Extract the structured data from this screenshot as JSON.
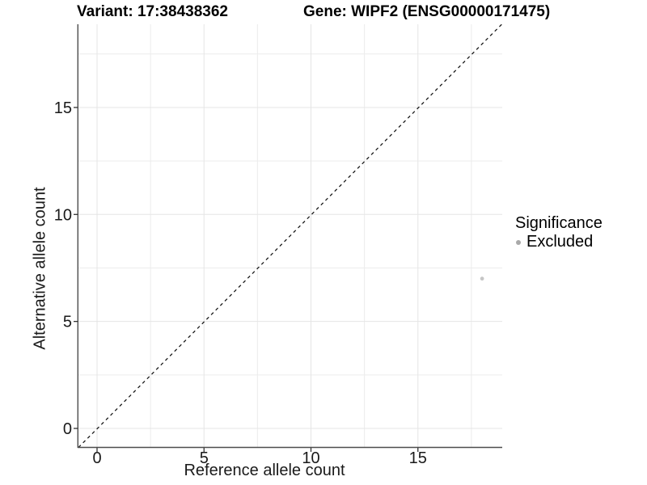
{
  "header": {
    "variant_title": "Variant: 17:38438362",
    "gene_title": "Gene: WIPF2 (ENSG00000171475)"
  },
  "axes": {
    "x_label": "Reference allele count",
    "y_label": "Alternative allele count"
  },
  "legend": {
    "title": "Significance",
    "items": [
      {
        "label": "Excluded",
        "marker": "circle-icon",
        "color": "#a9a9a9"
      }
    ]
  },
  "colors": {
    "background": "#ffffff",
    "grid_major": "#e5e5e5",
    "grid_minor": "#ececec",
    "axis_line": "#4d4d4d",
    "tick_mark": "#333333",
    "tick_text": "#1a1a1a",
    "point": "#c6c6c6",
    "reference_line": "#1a1a1a"
  },
  "chart_data": {
    "type": "scatter",
    "title_left": "Variant: 17:38438362",
    "title_right": "Gene: WIPF2 (ENSG00000171475)",
    "xlabel": "Reference allele count",
    "ylabel": "Alternative allele count",
    "xlim": [
      -0.9,
      18.9
    ],
    "ylim": [
      -0.9,
      18.9
    ],
    "xticks": [
      0,
      5,
      10,
      15
    ],
    "yticks": [
      0,
      5,
      10,
      15
    ],
    "x_minor_gridlines": [
      2.5,
      7.5,
      12.5,
      17.5
    ],
    "y_minor_gridlines": [
      2.5,
      7.5,
      12.5,
      17.5
    ],
    "grid": true,
    "legend_position": "right",
    "reference_line": {
      "type": "identity",
      "equation": "y = x",
      "style": "dashed"
    },
    "series": [
      {
        "name": "Excluded",
        "points": [
          {
            "x": 18,
            "y": 7
          }
        ]
      }
    ]
  }
}
